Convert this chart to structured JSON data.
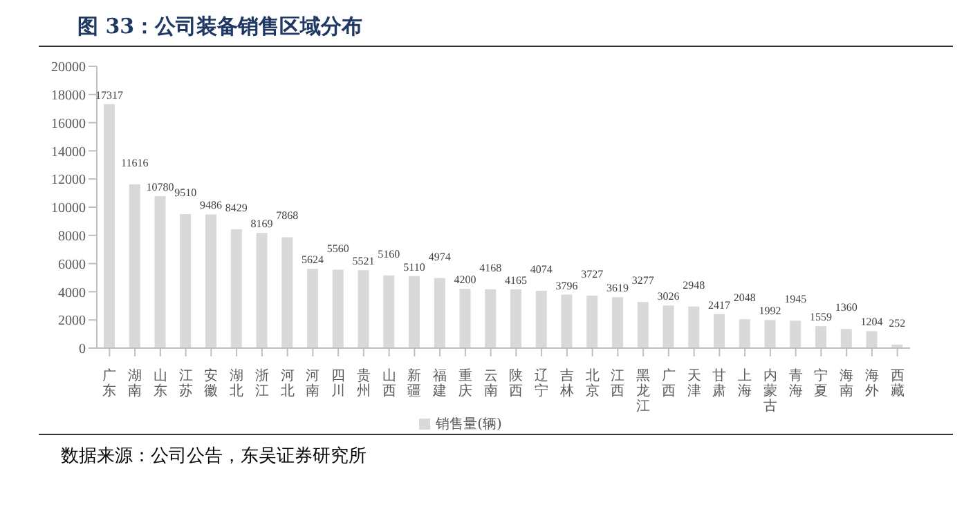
{
  "chart_data": {
    "type": "bar",
    "title": "图 33：公司装备销售区域分布",
    "categories": [
      "广东",
      "湖南",
      "山东",
      "江苏",
      "安徽",
      "湖北",
      "浙江",
      "河北",
      "河南",
      "四川",
      "贵州",
      "山西",
      "新疆",
      "福建",
      "重庆",
      "云南",
      "陕西",
      "辽宁",
      "吉林",
      "北京",
      "江西",
      "黑龙江",
      "广西",
      "天津",
      "甘肃",
      "上海",
      "内蒙古",
      "青海",
      "宁夏",
      "海南",
      "海外",
      "西藏"
    ],
    "series": [
      {
        "name": "销售量(辆)",
        "color": "#d9d9d9",
        "values": [
          17317,
          11616,
          10780,
          9510,
          9486,
          8429,
          8169,
          7868,
          5624,
          5560,
          5521,
          5160,
          5110,
          4974,
          4200,
          4168,
          4165,
          4074,
          3796,
          3727,
          3619,
          3277,
          3026,
          2948,
          2417,
          2048,
          1992,
          1945,
          1559,
          1360,
          1204,
          252
        ]
      }
    ],
    "ylim": [
      0,
      20000
    ],
    "yticks": [
      0,
      2000,
      4000,
      6000,
      8000,
      10000,
      12000,
      14000,
      16000,
      18000,
      20000
    ],
    "data_labels": true,
    "legend": "bottom",
    "annotations": [
      "数据来源：公司公告，东吴证券研究所"
    ]
  }
}
